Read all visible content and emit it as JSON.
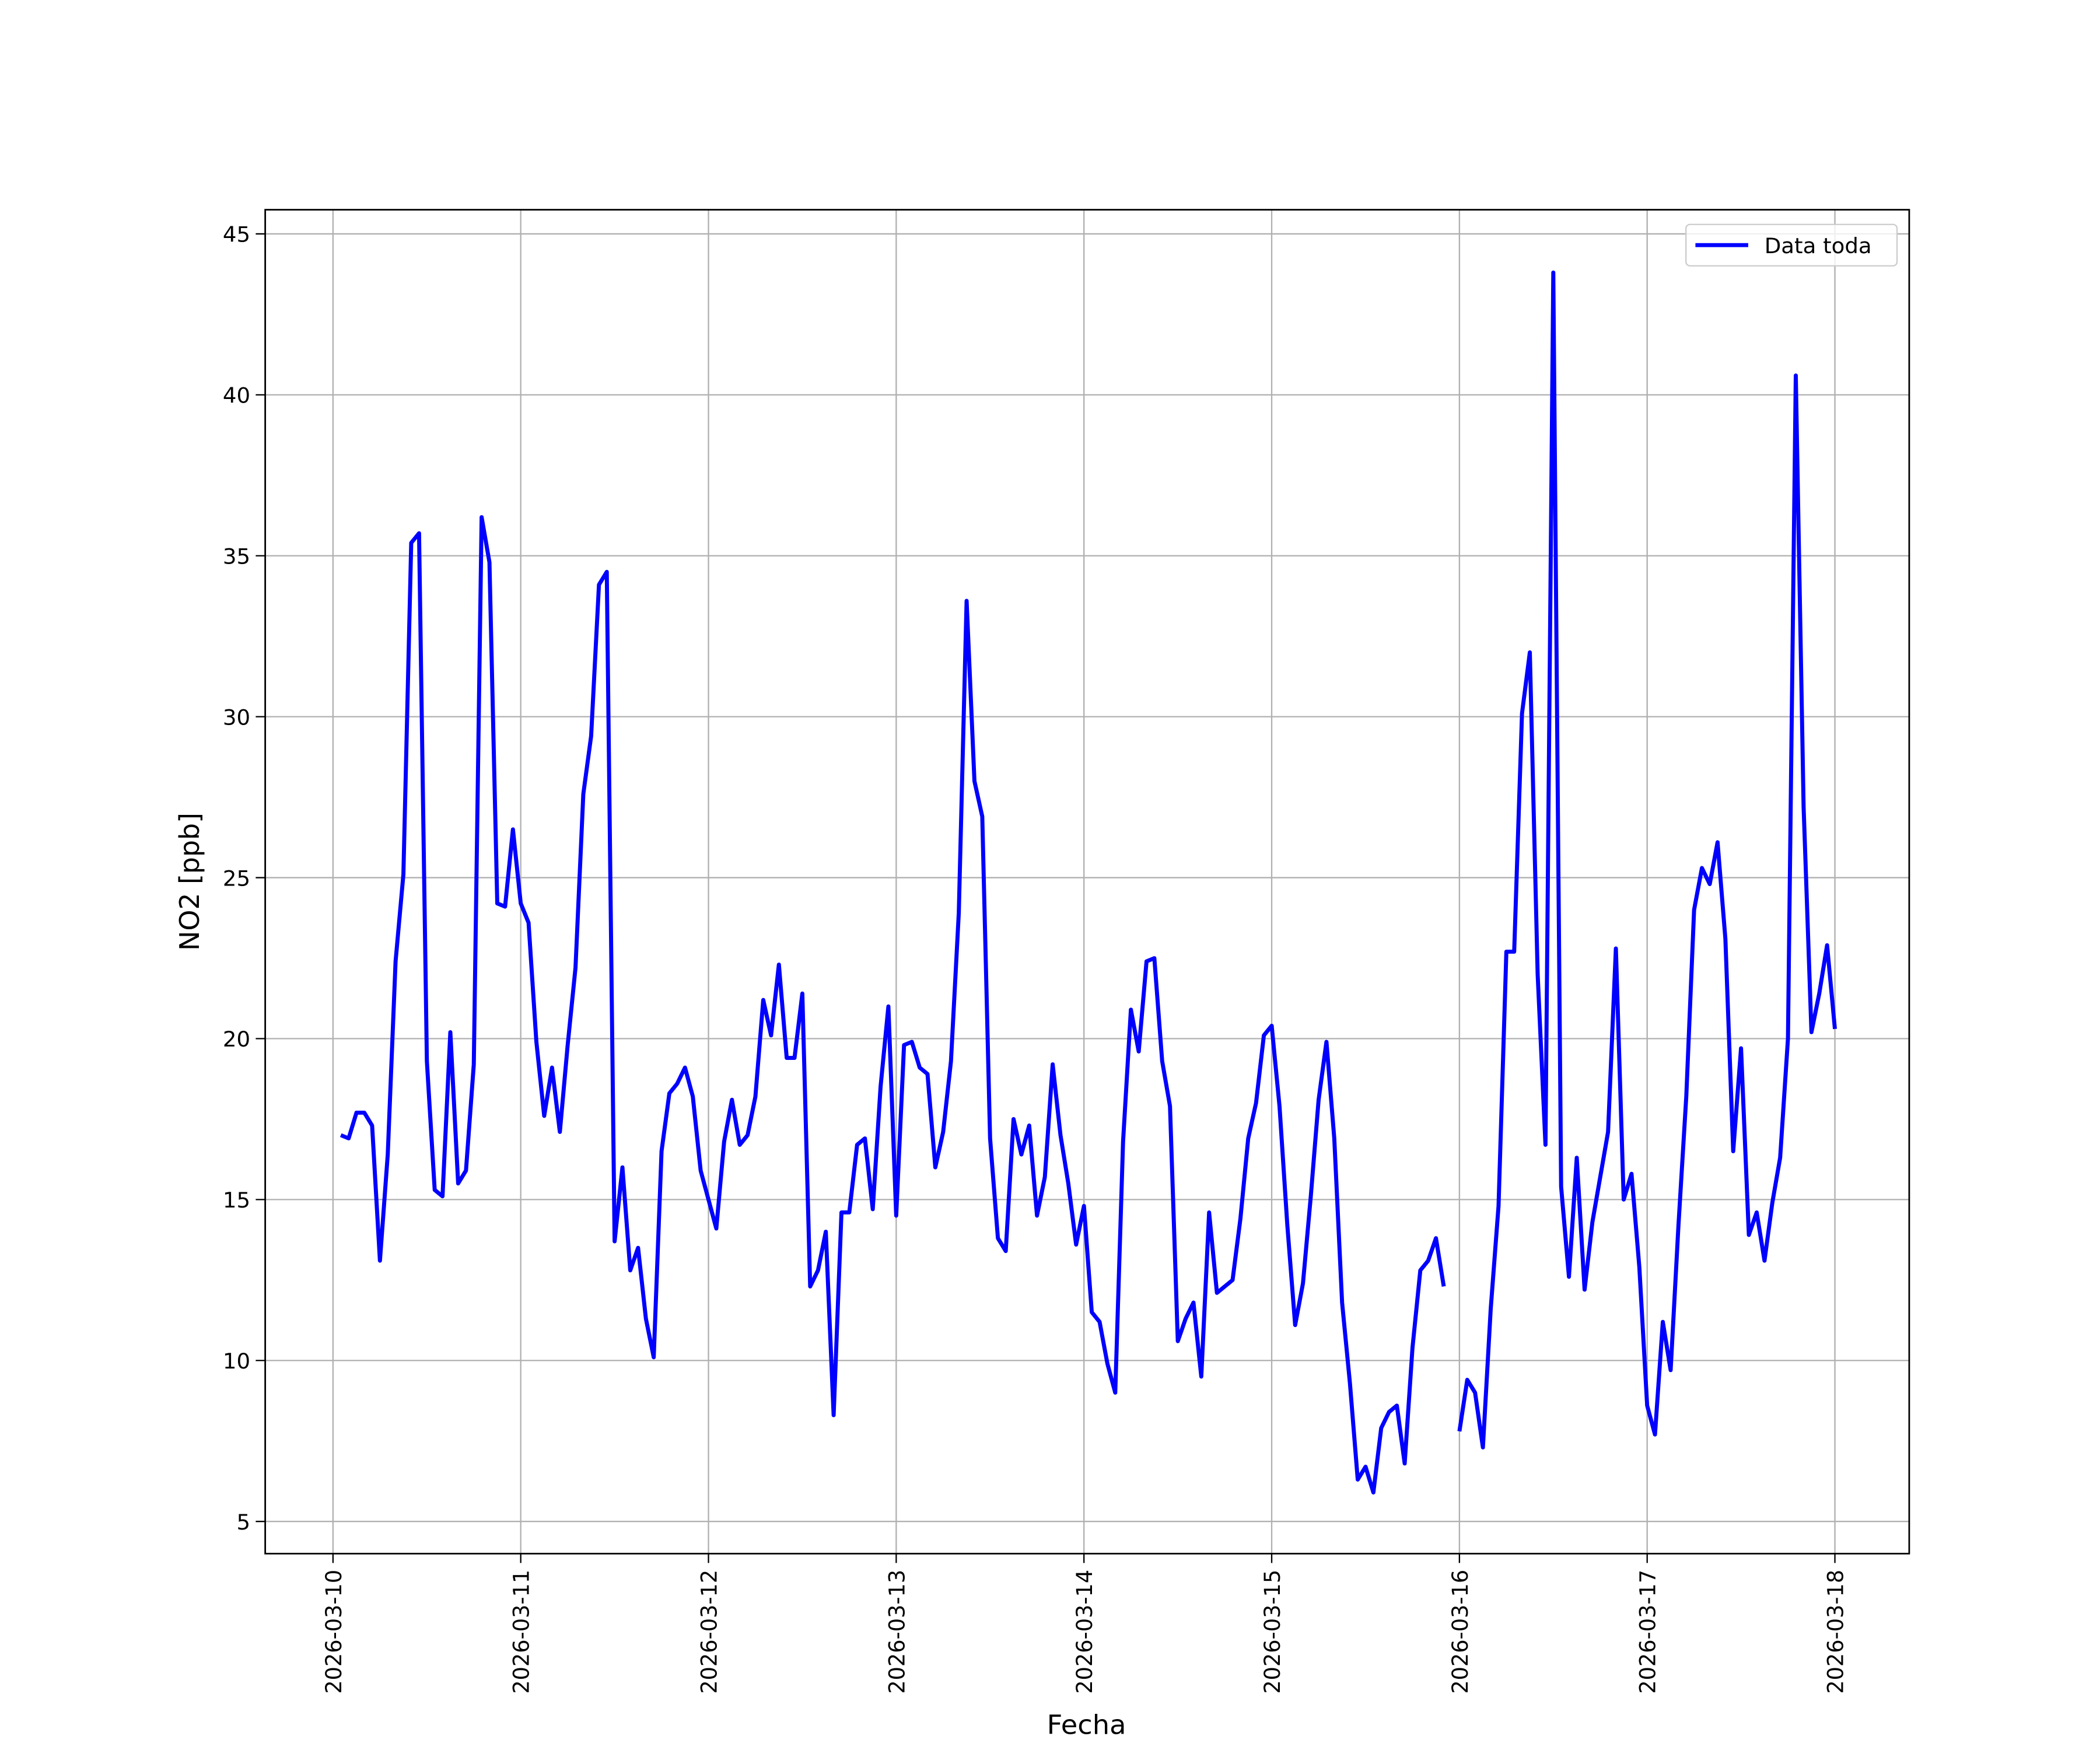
{
  "chart_data": {
    "type": "line",
    "xlabel": "Fecha",
    "ylabel": "NO2 [ppb]",
    "x": [
      "2026-03-10 01:00",
      "2026-03-10 02:00",
      "2026-03-10 03:00",
      "2026-03-10 04:00",
      "2026-03-10 05:00",
      "2026-03-10 06:00",
      "2026-03-10 07:00",
      "2026-03-10 08:00",
      "2026-03-10 09:00",
      "2026-03-10 10:00",
      "2026-03-10 11:00",
      "2026-03-10 12:00",
      "2026-03-10 13:00",
      "2026-03-10 14:00",
      "2026-03-10 15:00",
      "2026-03-10 16:00",
      "2026-03-10 17:00",
      "2026-03-10 18:00",
      "2026-03-10 19:00",
      "2026-03-10 20:00",
      "2026-03-10 21:00",
      "2026-03-10 22:00",
      "2026-03-10 23:00",
      "2026-03-11 00:00",
      "2026-03-11 01:00",
      "2026-03-11 02:00",
      "2026-03-11 03:00",
      "2026-03-11 04:00",
      "2026-03-11 05:00",
      "2026-03-11 06:00",
      "2026-03-11 07:00",
      "2026-03-11 08:00",
      "2026-03-11 09:00",
      "2026-03-11 10:00",
      "2026-03-11 11:00",
      "2026-03-11 12:00",
      "2026-03-11 13:00",
      "2026-03-11 14:00",
      "2026-03-11 15:00",
      "2026-03-11 16:00",
      "2026-03-11 17:00",
      "2026-03-11 18:00",
      "2026-03-11 19:00",
      "2026-03-11 20:00",
      "2026-03-11 21:00",
      "2026-03-11 22:00",
      "2026-03-11 23:00",
      "2026-03-12 00:00",
      "2026-03-12 01:00",
      "2026-03-12 02:00",
      "2026-03-12 03:00",
      "2026-03-12 04:00",
      "2026-03-12 05:00",
      "2026-03-12 06:00",
      "2026-03-12 07:00",
      "2026-03-12 08:00",
      "2026-03-12 09:00",
      "2026-03-12 10:00",
      "2026-03-12 11:00",
      "2026-03-12 12:00",
      "2026-03-12 13:00",
      "2026-03-12 14:00",
      "2026-03-12 15:00",
      "2026-03-12 16:00",
      "2026-03-12 17:00",
      "2026-03-12 18:00",
      "2026-03-12 19:00",
      "2026-03-12 20:00",
      "2026-03-12 21:00",
      "2026-03-12 22:00",
      "2026-03-12 23:00",
      "2026-03-13 00:00",
      "2026-03-13 01:00",
      "2026-03-13 02:00",
      "2026-03-13 03:00",
      "2026-03-13 04:00",
      "2026-03-13 05:00",
      "2026-03-13 06:00",
      "2026-03-13 07:00",
      "2026-03-13 08:00",
      "2026-03-13 09:00",
      "2026-03-13 10:00",
      "2026-03-13 11:00",
      "2026-03-13 12:00",
      "2026-03-13 13:00",
      "2026-03-13 14:00",
      "2026-03-13 15:00",
      "2026-03-13 16:00",
      "2026-03-13 17:00",
      "2026-03-13 18:00",
      "2026-03-13 19:00",
      "2026-03-13 20:00",
      "2026-03-13 21:00",
      "2026-03-13 22:00",
      "2026-03-13 23:00",
      "2026-03-14 00:00",
      "2026-03-14 01:00",
      "2026-03-14 02:00",
      "2026-03-14 03:00",
      "2026-03-14 04:00",
      "2026-03-14 05:00",
      "2026-03-14 06:00",
      "2026-03-14 07:00",
      "2026-03-14 08:00",
      "2026-03-14 09:00",
      "2026-03-14 10:00",
      "2026-03-14 11:00",
      "2026-03-14 12:00",
      "2026-03-14 13:00",
      "2026-03-14 14:00",
      "2026-03-14 15:00",
      "2026-03-14 16:00",
      "2026-03-14 17:00",
      "2026-03-14 18:00",
      "2026-03-14 19:00",
      "2026-03-14 20:00",
      "2026-03-14 21:00",
      "2026-03-14 22:00",
      "2026-03-14 23:00",
      "2026-03-15 00:00",
      "2026-03-15 01:00",
      "2026-03-15 02:00",
      "2026-03-15 03:00",
      "2026-03-15 04:00",
      "2026-03-15 05:00",
      "2026-03-15 06:00",
      "2026-03-15 07:00",
      "2026-03-15 08:00",
      "2026-03-15 09:00",
      "2026-03-15 10:00",
      "2026-03-15 11:00",
      "2026-03-15 12:00",
      "2026-03-15 13:00",
      "2026-03-15 14:00",
      "2026-03-15 15:00",
      "2026-03-15 16:00",
      "2026-03-15 17:00",
      "2026-03-15 18:00",
      "2026-03-15 19:00",
      "2026-03-15 20:00",
      "2026-03-15 21:00",
      "2026-03-15 22:00",
      "2026-03-15 23:00",
      "2026-03-16 00:00",
      "2026-03-16 01:00",
      "2026-03-16 02:00",
      "2026-03-16 03:00",
      "2026-03-16 04:00",
      "2026-03-16 05:00",
      "2026-03-16 06:00",
      "2026-03-16 07:00",
      "2026-03-16 08:00",
      "2026-03-16 09:00",
      "2026-03-16 10:00",
      "2026-03-16 11:00",
      "2026-03-16 12:00",
      "2026-03-16 13:00",
      "2026-03-16 14:00",
      "2026-03-16 15:00",
      "2026-03-16 16:00",
      "2026-03-16 17:00",
      "2026-03-16 18:00",
      "2026-03-16 19:00",
      "2026-03-16 20:00",
      "2026-03-16 21:00",
      "2026-03-16 22:00",
      "2026-03-16 23:00",
      "2026-03-17 00:00",
      "2026-03-17 01:00",
      "2026-03-17 02:00",
      "2026-03-17 03:00",
      "2026-03-17 04:00",
      "2026-03-17 05:00",
      "2026-03-17 06:00",
      "2026-03-17 07:00",
      "2026-03-17 08:00",
      "2026-03-17 09:00",
      "2026-03-17 10:00",
      "2026-03-17 11:00",
      "2026-03-17 12:00",
      "2026-03-17 13:00",
      "2026-03-17 14:00",
      "2026-03-17 15:00",
      "2026-03-17 16:00",
      "2026-03-17 17:00",
      "2026-03-17 18:00",
      "2026-03-17 19:00",
      "2026-03-17 20:00",
      "2026-03-17 21:00",
      "2026-03-17 22:00",
      "2026-03-17 23:00",
      "2026-03-18 00:00"
    ],
    "series": [
      {
        "name": "Data toda",
        "color": "#0000ff",
        "values": [
          17.0,
          16.9,
          17.7,
          17.7,
          17.3,
          13.1,
          16.4,
          22.4,
          25.1,
          35.4,
          35.7,
          19.3,
          15.3,
          15.1,
          20.2,
          15.5,
          15.9,
          19.2,
          36.2,
          34.8,
          24.2,
          24.1,
          26.5,
          24.2,
          23.6,
          19.9,
          17.6,
          19.1,
          17.1,
          19.8,
          22.2,
          27.6,
          29.4,
          34.1,
          34.5,
          13.7,
          16.0,
          12.8,
          13.5,
          11.3,
          10.1,
          16.5,
          18.3,
          18.6,
          19.1,
          18.2,
          15.9,
          15.0,
          14.1,
          16.8,
          18.1,
          16.7,
          17.0,
          18.2,
          21.2,
          20.1,
          22.3,
          19.4,
          19.4,
          21.4,
          12.3,
          12.8,
          14.0,
          8.3,
          14.6,
          14.6,
          16.7,
          16.9,
          14.7,
          18.5,
          21.0,
          14.5,
          19.8,
          19.9,
          19.1,
          18.9,
          16.0,
          17.1,
          19.3,
          23.9,
          33.6,
          28.0,
          26.9,
          16.9,
          13.8,
          13.4,
          17.5,
          16.4,
          17.3,
          14.5,
          15.7,
          19.2,
          17.0,
          15.5,
          13.6,
          14.8,
          11.5,
          11.2,
          9.9,
          9.0,
          16.8,
          20.9,
          19.6,
          22.4,
          22.5,
          19.3,
          17.9,
          10.6,
          11.3,
          11.8,
          9.5,
          14.6,
          12.1,
          12.3,
          12.5,
          14.4,
          16.9,
          18.0,
          20.1,
          20.4,
          17.9,
          14.2,
          11.1,
          12.4,
          15.1,
          18.1,
          19.9,
          16.9,
          11.8,
          9.3,
          6.3,
          6.7,
          5.9,
          7.9,
          8.4,
          8.6,
          6.8,
          10.4,
          12.8,
          13.1,
          13.8,
          12.3,
          null,
          7.8,
          9.4,
          9.0,
          7.3,
          11.6,
          14.8,
          22.7,
          22.7,
          30.1,
          32.0,
          22.0,
          16.7,
          43.8,
          15.4,
          12.6,
          16.3,
          12.2,
          14.3,
          15.7,
          17.1,
          22.8,
          15.0,
          15.8,
          12.9,
          8.6,
          7.7,
          11.2,
          9.7,
          14.2,
          18.2,
          24.0,
          25.3,
          24.8,
          26.1,
          23.1,
          16.5,
          19.7,
          13.9,
          14.6,
          13.1,
          14.9,
          16.3,
          20.0,
          40.6,
          27.2,
          20.2,
          21.4,
          22.9,
          20.3
        ]
      }
    ],
    "xlim": [
      "2026-03-09 15:20",
      "2026-03-18 09:30"
    ],
    "xticks": [
      "2026-03-10",
      "2026-03-11",
      "2026-03-12",
      "2026-03-13",
      "2026-03-14",
      "2026-03-15",
      "2026-03-16",
      "2026-03-17",
      "2026-03-18"
    ],
    "ylim": [
      4.0,
      45.75
    ],
    "yticks": [
      5,
      10,
      15,
      20,
      25,
      30,
      35,
      40,
      45
    ],
    "grid": true,
    "legend": "upper right"
  }
}
